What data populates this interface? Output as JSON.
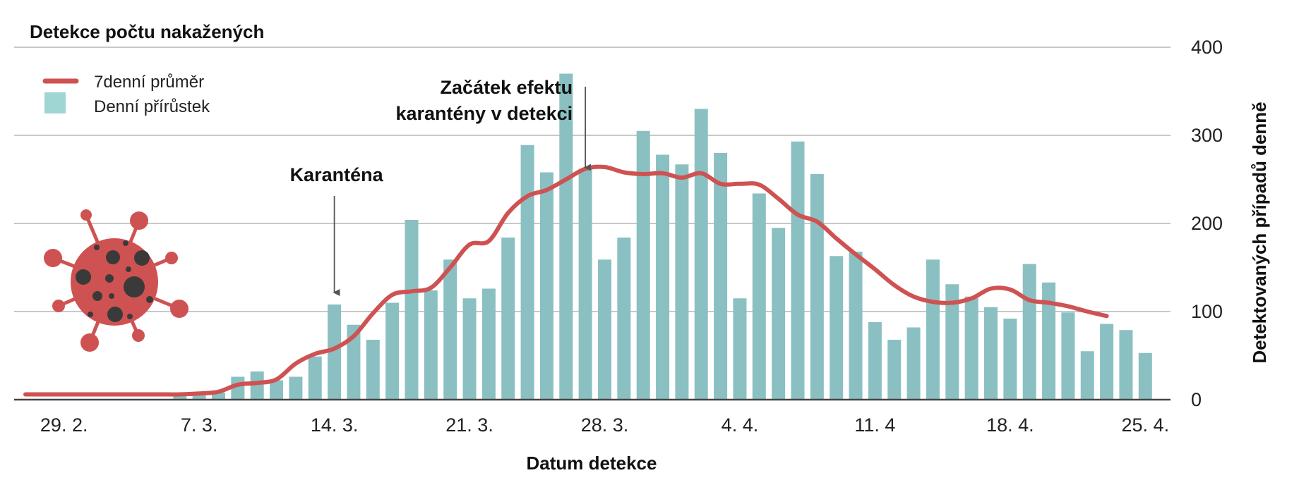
{
  "chart_data": {
    "type": "bar",
    "title": "Detekce počtu nakažených",
    "xlabel": "Datum detekce",
    "ylabel": "Detektovaných případů denně",
    "ylim": [
      0,
      400
    ],
    "y_ticks": [
      0,
      100,
      200,
      300,
      400
    ],
    "grid": true,
    "x_tick_labels": [
      "29. 2.",
      "7. 3.",
      "14. 3.",
      "21. 3.",
      "28. 3.",
      "4. 4.",
      "11. 4",
      "18. 4.",
      "25. 4."
    ],
    "x_tick_positions": [
      "2020-02-29",
      "2020-03-07",
      "2020-03-14",
      "2020-03-21",
      "2020-03-28",
      "2020-04-04",
      "2020-04-11",
      "2020-04-18",
      "2020-04-25"
    ],
    "x_dates": [
      "2020-02-27",
      "2020-02-28",
      "2020-02-29",
      "2020-03-01",
      "2020-03-02",
      "2020-03-03",
      "2020-03-04",
      "2020-03-05",
      "2020-03-06",
      "2020-03-07",
      "2020-03-08",
      "2020-03-09",
      "2020-03-10",
      "2020-03-11",
      "2020-03-12",
      "2020-03-13",
      "2020-03-14",
      "2020-03-15",
      "2020-03-16",
      "2020-03-17",
      "2020-03-18",
      "2020-03-19",
      "2020-03-20",
      "2020-03-21",
      "2020-03-22",
      "2020-03-23",
      "2020-03-24",
      "2020-03-25",
      "2020-03-26",
      "2020-03-27",
      "2020-03-28",
      "2020-03-29",
      "2020-03-30",
      "2020-03-31",
      "2020-04-01",
      "2020-04-02",
      "2020-04-03",
      "2020-04-04",
      "2020-04-05",
      "2020-04-06",
      "2020-04-07",
      "2020-04-08",
      "2020-04-09",
      "2020-04-10",
      "2020-04-11",
      "2020-04-12",
      "2020-04-13",
      "2020-04-14",
      "2020-04-15",
      "2020-04-16",
      "2020-04-17",
      "2020-04-18",
      "2020-04-19",
      "2020-04-20",
      "2020-04-21",
      "2020-04-22",
      "2020-04-23",
      "2020-04-24",
      "2020-04-25"
    ],
    "series": [
      {
        "name": "Denní přírůstek",
        "kind": "bar",
        "color": "#8ac0c2",
        "values": [
          0,
          0,
          0,
          0,
          0,
          0,
          0,
          0,
          5,
          8,
          8,
          26,
          32,
          22,
          26,
          49,
          108,
          85,
          68,
          110,
          204,
          124,
          159,
          115,
          126,
          184,
          289,
          258,
          370,
          262,
          159,
          184,
          305,
          278,
          267,
          330,
          280,
          115,
          234,
          195,
          293,
          256,
          163,
          168,
          88,
          68,
          82,
          159,
          131,
          117,
          105,
          92,
          154,
          133,
          99,
          55,
          86,
          79,
          53
        ]
      },
      {
        "name": "7denní průměr",
        "kind": "line",
        "color": "#cf5252",
        "values": [
          6,
          6,
          6,
          6,
          6,
          6,
          6,
          6,
          6,
          7,
          9,
          17,
          19,
          23,
          41,
          52,
          58,
          72,
          98,
          119,
          123,
          127,
          150,
          176,
          180,
          212,
          231,
          238,
          250,
          262,
          264,
          258,
          256,
          257,
          252,
          257,
          245,
          245,
          244,
          228,
          210,
          202,
          183,
          165,
          148,
          130,
          117,
          111,
          110,
          115,
          126,
          125,
          113,
          110,
          106,
          100,
          95,
          null,
          null
        ]
      }
    ],
    "annotations": [
      {
        "text": "Karanténa",
        "date": "2020-03-14",
        "y": 120,
        "color": "#555555"
      },
      {
        "text_lines": [
          "Začátek efektu",
          "karantény v detekci"
        ],
        "date": "2020-03-27",
        "y": 262,
        "color": "#555555"
      }
    ],
    "legend": {
      "placement": "top-left",
      "items": [
        {
          "label": "7denní průměr",
          "swatch": "line",
          "color": "#cf5252"
        },
        {
          "label": "Denní přírůstek",
          "swatch": "box",
          "color": "#9fd6d3"
        }
      ]
    },
    "virus_icon": {
      "name": "virus-icon",
      "color": "#cf5252",
      "dot_color": "#3a3a3a"
    }
  }
}
